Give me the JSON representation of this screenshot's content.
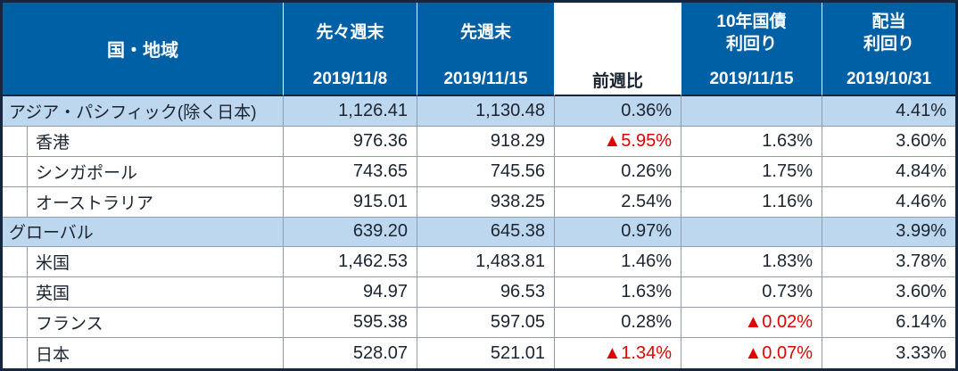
{
  "chart_data": {
    "type": "table",
    "header": {
      "region": "国・地域",
      "prev2_label": "先々週末",
      "prev2_date": "2019/11/8",
      "prev1_label": "先週末",
      "prev1_date": "2019/11/15",
      "wow_label": "前週比",
      "bond_label_line1": "10年国債",
      "bond_label_line2": "利回り",
      "bond_date": "2019/11/15",
      "div_label_line1": "配当",
      "div_label_line2": "利回り",
      "div_date": "2019/10/31"
    },
    "rows": [
      {
        "label": "アジア・パシフィック(除く日本)",
        "category": true,
        "prev2": "1,126.41",
        "prev1": "1,130.48",
        "wow": "0.36%",
        "bond": "",
        "div": "4.41%"
      },
      {
        "label": "香港",
        "category": false,
        "prev2": "976.36",
        "prev1": "918.29",
        "wow": "▲5.95%",
        "bond": "1.63%",
        "div": "3.60%"
      },
      {
        "label": "シンガポール",
        "category": false,
        "prev2": "743.65",
        "prev1": "745.56",
        "wow": "0.26%",
        "bond": "1.75%",
        "div": "4.84%"
      },
      {
        "label": "オーストラリア",
        "category": false,
        "prev2": "915.01",
        "prev1": "938.25",
        "wow": "2.54%",
        "bond": "1.16%",
        "div": "4.46%"
      },
      {
        "label": "グローバル",
        "category": true,
        "prev2": "639.20",
        "prev1": "645.38",
        "wow": "0.97%",
        "bond": "",
        "div": "3.99%"
      },
      {
        "label": "米国",
        "category": false,
        "prev2": "1,462.53",
        "prev1": "1,483.81",
        "wow": "1.46%",
        "bond": "1.83%",
        "div": "3.78%"
      },
      {
        "label": "英国",
        "category": false,
        "prev2": "94.97",
        "prev1": "96.53",
        "wow": "1.63%",
        "bond": "0.73%",
        "div": "3.60%"
      },
      {
        "label": "フランス",
        "category": false,
        "prev2": "595.38",
        "prev1": "597.05",
        "wow": "0.28%",
        "bond": "▲0.02%",
        "div": "6.14%"
      },
      {
        "label": "日本",
        "category": false,
        "prev2": "528.07",
        "prev1": "521.01",
        "wow": "▲1.34%",
        "bond": "▲0.07%",
        "div": "3.33%"
      }
    ],
    "colors": {
      "header_bg": "#0060a5",
      "category_row_bg": "#bdd7ee",
      "negative_text": "#e00000",
      "outer_border": "#14273e",
      "grid_line": "#8e9cab"
    }
  }
}
